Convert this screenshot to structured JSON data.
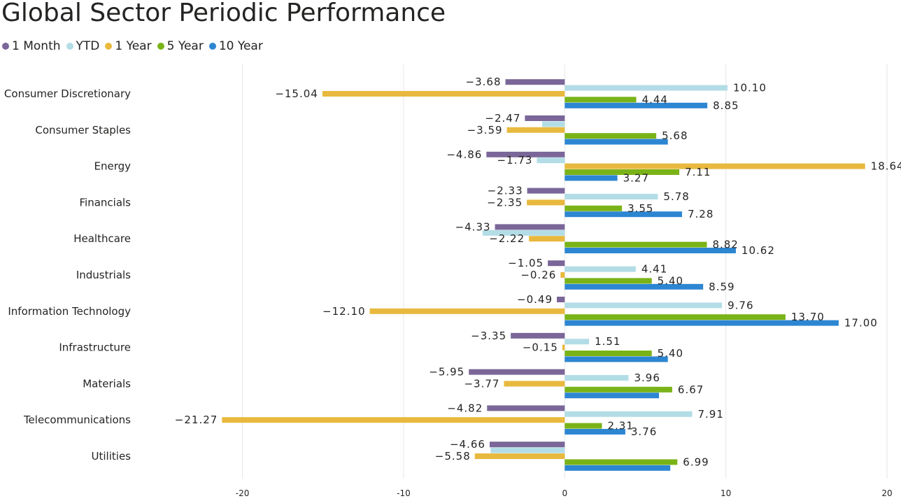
{
  "chart_data": {
    "type": "bar",
    "orientation": "horizontal",
    "title": "Global Sector Periodic Performance",
    "categories": [
      "Consumer Discretionary",
      "Consumer Staples",
      "Energy",
      "Financials",
      "Healthcare",
      "Industrials",
      "Information Technology",
      "Infrastructure",
      "Materials",
      "Telecommunications",
      "Utilities"
    ],
    "series": [
      {
        "name": "1 Month",
        "color": "#7A6698",
        "values": [
          -3.68,
          -2.47,
          -4.86,
          -2.33,
          -4.33,
          -1.05,
          -0.49,
          -3.35,
          -5.95,
          -4.82,
          -4.66
        ],
        "labels": [
          "-3.68",
          "-2.47",
          "-4.86",
          "-2.33",
          "-4.33",
          "-1.05",
          "-0.49",
          "-3.35",
          "-5.95",
          "-4.82",
          "-4.66"
        ]
      },
      {
        "name": "YTD",
        "color": "#B3DDE6",
        "values": [
          10.1,
          -1.4,
          -1.73,
          5.78,
          -5.1,
          4.41,
          9.76,
          1.51,
          3.96,
          7.91,
          -4.6
        ],
        "labels": [
          "10.10",
          "",
          "-1.73",
          "5.78",
          "",
          "4.41",
          "9.76",
          "1.51",
          "3.96",
          "7.91",
          ""
        ]
      },
      {
        "name": "1 Year",
        "color": "#E8B93E",
        "values": [
          -15.04,
          -3.59,
          18.64,
          -2.35,
          -2.22,
          -0.26,
          -12.1,
          -0.15,
          -3.77,
          -21.27,
          -5.58
        ],
        "labels": [
          "-15.04",
          "-3.59",
          "18.64",
          "-2.35",
          "-2.22",
          "-0.26",
          "-12.10",
          "-0.15",
          "-3.77",
          "-21.27",
          "-5.58"
        ]
      },
      {
        "name": "5 Year",
        "color": "#7AB317",
        "values": [
          4.44,
          5.68,
          7.11,
          3.55,
          8.82,
          5.4,
          13.7,
          5.4,
          6.67,
          2.31,
          6.99
        ],
        "labels": [
          "4.44",
          "5.68",
          "7.11",
          "3.55",
          "8.82",
          "5.40",
          "13.70",
          "5.40",
          "6.67",
          "2.31",
          "6.99"
        ]
      },
      {
        "name": "10 Year",
        "color": "#2D86D2",
        "values": [
          8.85,
          6.4,
          3.27,
          7.28,
          10.62,
          8.59,
          17.0,
          6.4,
          5.85,
          3.76,
          6.55
        ],
        "labels": [
          "8.85",
          "",
          "3.27",
          "7.28",
          "10.62",
          "8.59",
          "17.00",
          "",
          "",
          "3.76",
          ""
        ]
      }
    ],
    "x_ticks": [
      "-20",
      "-10",
      "0",
      "10",
      "20"
    ],
    "x_tick_values": [
      -20,
      -10,
      0,
      10,
      20
    ],
    "xlim": [
      -24.8,
      20.0
    ],
    "xlabel": "",
    "ylabel": "",
    "grid": true,
    "legend_position": "top-left"
  }
}
